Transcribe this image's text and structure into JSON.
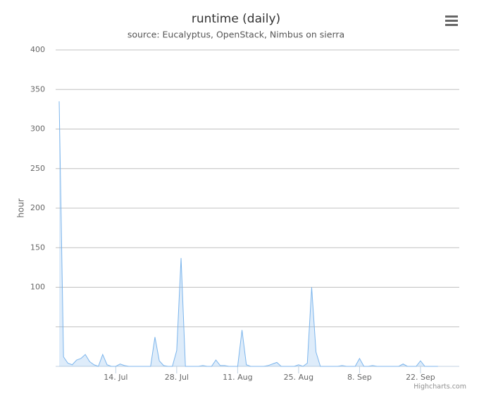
{
  "chart_data": {
    "type": "area",
    "title": "runtime (daily)",
    "subtitle": "source: Eucalyptus, OpenStack, Nimbus on sierra",
    "y_label": "hour",
    "credits": "Highcharts.com",
    "color": "#7cb5ec",
    "grid": true,
    "ylim": [
      0,
      400
    ],
    "yticks": [
      {
        "value": 0,
        "label": null
      },
      {
        "value": 50,
        "label": null
      },
      100,
      150,
      200,
      250,
      300,
      350,
      400
    ],
    "categories": [
      null,
      null,
      null,
      null,
      null,
      null,
      null,
      null,
      null,
      null,
      null,
      null,
      null,
      "14. Jul",
      null,
      null,
      null,
      null,
      null,
      null,
      null,
      null,
      null,
      null,
      null,
      null,
      null,
      "28. Jul",
      null,
      null,
      null,
      null,
      null,
      null,
      null,
      null,
      null,
      null,
      null,
      null,
      null,
      "11. Aug",
      null,
      null,
      null,
      null,
      null,
      null,
      null,
      null,
      null,
      null,
      null,
      null,
      null,
      "25. Aug",
      null,
      null,
      null,
      null,
      null,
      null,
      null,
      null,
      null,
      null,
      null,
      null,
      null,
      "8. Sep",
      null,
      null,
      null,
      null,
      null,
      null,
      null,
      null,
      null,
      null,
      null,
      null,
      null,
      "22. Sep",
      null,
      null,
      null,
      null
    ],
    "values": [
      335,
      12,
      4,
      2,
      8,
      10,
      15,
      6,
      2,
      0,
      15,
      2,
      0,
      0,
      3,
      1,
      0,
      0,
      0,
      0,
      0,
      0,
      37,
      7,
      1,
      0,
      0,
      20,
      137,
      0,
      0,
      0,
      0,
      1,
      0,
      0,
      8,
      1,
      1,
      0,
      0,
      0,
      46,
      2,
      0,
      0,
      0,
      0,
      1,
      3,
      5,
      0,
      0,
      0,
      0,
      2,
      0,
      4,
      100,
      18,
      0,
      0,
      0,
      0,
      0,
      1,
      0,
      0,
      0,
      10,
      0,
      0,
      1,
      0,
      0,
      0,
      0,
      0,
      0,
      3,
      0,
      0,
      0,
      7,
      0,
      0,
      0,
      0
    ]
  }
}
